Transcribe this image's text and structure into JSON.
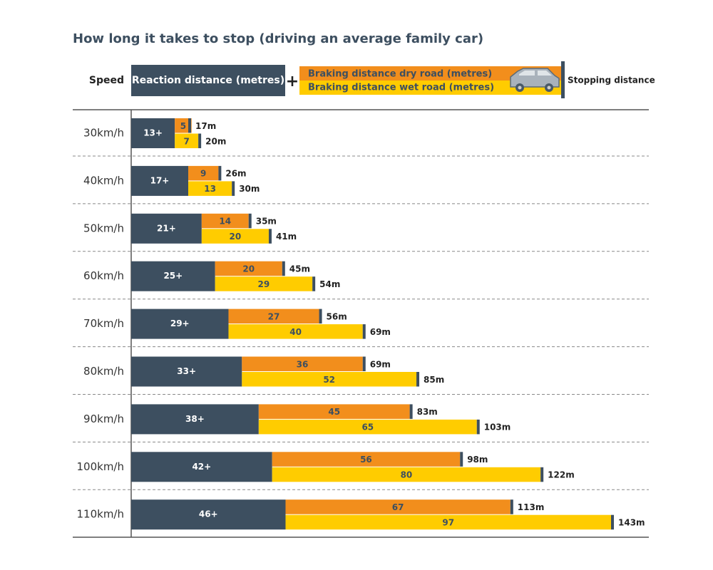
{
  "chart_data": {
    "type": "bar",
    "orientation": "horizontal",
    "title": "How long it takes to stop (driving an average family car)",
    "y_label": "Speed",
    "legend_operator": "+",
    "stopping_label": "Stopping distance",
    "categories": [
      "30km/h",
      "40km/h",
      "50km/h",
      "60km/h",
      "70km/h",
      "80km/h",
      "90km/h",
      "100km/h",
      "110km/h"
    ],
    "series": [
      {
        "name": "Reaction distance (metres)",
        "color": "#3d4f60",
        "values": [
          13,
          17,
          21,
          25,
          29,
          33,
          38,
          42,
          46
        ],
        "value_labels": [
          "13+",
          "17+",
          "21+",
          "25+",
          "29+",
          "33+",
          "38+",
          "42+",
          "46+"
        ]
      },
      {
        "name": "Braking distance dry road (metres)",
        "color": "#f28e1c",
        "values": [
          5,
          9,
          14,
          20,
          27,
          36,
          45,
          56,
          67
        ]
      },
      {
        "name": "Braking distance wet road (metres)",
        "color": "#ffcc00",
        "values": [
          7,
          13,
          20,
          29,
          40,
          52,
          65,
          80,
          97
        ]
      }
    ],
    "stopping_dry": {
      "values": [
        17,
        26,
        35,
        45,
        56,
        69,
        83,
        98,
        113
      ],
      "value_labels": [
        "17m",
        "26m",
        "35m",
        "45m",
        "56m",
        "69m",
        "83m",
        "98m",
        "113m"
      ]
    },
    "stopping_wet": {
      "values": [
        20,
        30,
        41,
        54,
        69,
        85,
        103,
        122,
        143
      ],
      "value_labels": [
        "20m",
        "30m",
        "41m",
        "54m",
        "69m",
        "85m",
        "103m",
        "122m",
        "143m"
      ]
    },
    "marker_color": "#3d4f60"
  }
}
